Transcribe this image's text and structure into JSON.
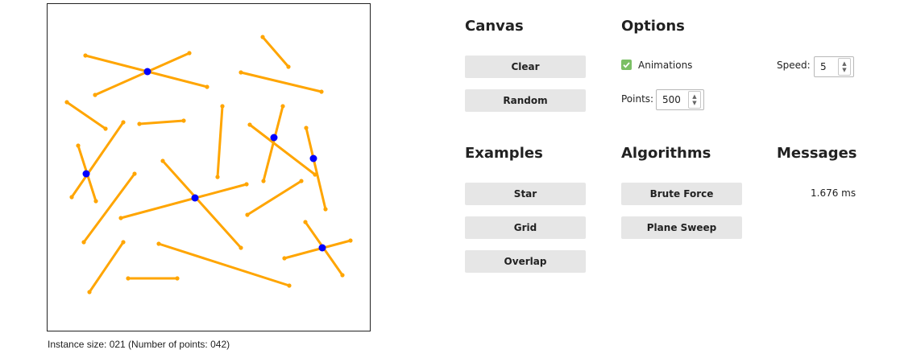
{
  "canvas_panel": {
    "instance_size_text": "Instance size: 021 (Number of points: 042)",
    "segment_color": "#FFA500",
    "intersection_color": "#0000FF"
  },
  "sections": {
    "canvas": {
      "heading": "Canvas",
      "buttons": {
        "clear": "Clear",
        "random": "Random"
      }
    },
    "options": {
      "heading": "Options",
      "animations_label": "Animations",
      "animations_checked": true,
      "speed_label": "Speed:",
      "speed_value": "5",
      "points_label": "Points:",
      "points_value": "500"
    },
    "examples": {
      "heading": "Examples",
      "buttons": {
        "star": "Star",
        "grid": "Grid",
        "overlap": "Overlap"
      }
    },
    "algorithms": {
      "heading": "Algorithms",
      "buttons": {
        "brute_force": "Brute Force",
        "plane_sweep": "Plane Sweep"
      }
    },
    "messages": {
      "heading": "Messages",
      "text": "1.676 ms"
    }
  }
}
